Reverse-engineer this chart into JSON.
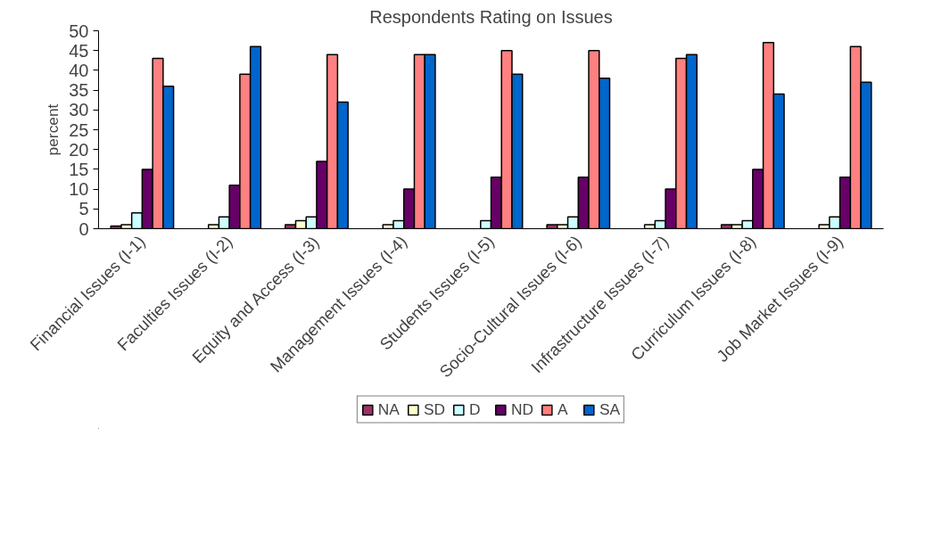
{
  "chart_data": {
    "type": "bar",
    "title": "Respondents Rating on Issues",
    "ylabel": "percent",
    "categories": [
      "Financial Issues (I-1)",
      "Faculties Issues (I-2)",
      "Equity and Access (I-3)",
      "Management Issues (I-4)",
      "Students Issues (I-5)",
      "Socio-Cultural Issues (I-6)",
      "Infrastructure Issues (I-7)",
      "Curriculum Issues (I-8)",
      "Job Market Issues (I-9)"
    ],
    "series": [
      {
        "name": "NA",
        "color": "#993366",
        "values": [
          0.7,
          null,
          1,
          null,
          null,
          1,
          null,
          1,
          null
        ]
      },
      {
        "name": "SD",
        "color": "#ffffcc",
        "values": [
          1,
          1,
          2,
          1,
          null,
          1,
          1,
          1,
          1
        ]
      },
      {
        "name": "D",
        "color": "#ccffff",
        "values": [
          4,
          3,
          3,
          2,
          2,
          3,
          2,
          2,
          3
        ]
      },
      {
        "name": "ND",
        "color": "#660066",
        "values": [
          15,
          11,
          17,
          10,
          13,
          13,
          10,
          15,
          13
        ]
      },
      {
        "name": "A",
        "color": "#ff8080",
        "values": [
          43,
          39,
          44,
          44,
          45,
          45,
          43,
          47,
          46
        ]
      },
      {
        "name": "SA",
        "color": "#0066cc",
        "values": [
          36,
          46,
          32,
          44,
          39,
          38,
          44,
          34,
          37
        ]
      }
    ],
    "ylim": [
      0,
      50
    ],
    "yticks": [
      0,
      5,
      10,
      15,
      20,
      25,
      30,
      35,
      40,
      45,
      50
    ],
    "grid": false,
    "legend": "bottom"
  }
}
